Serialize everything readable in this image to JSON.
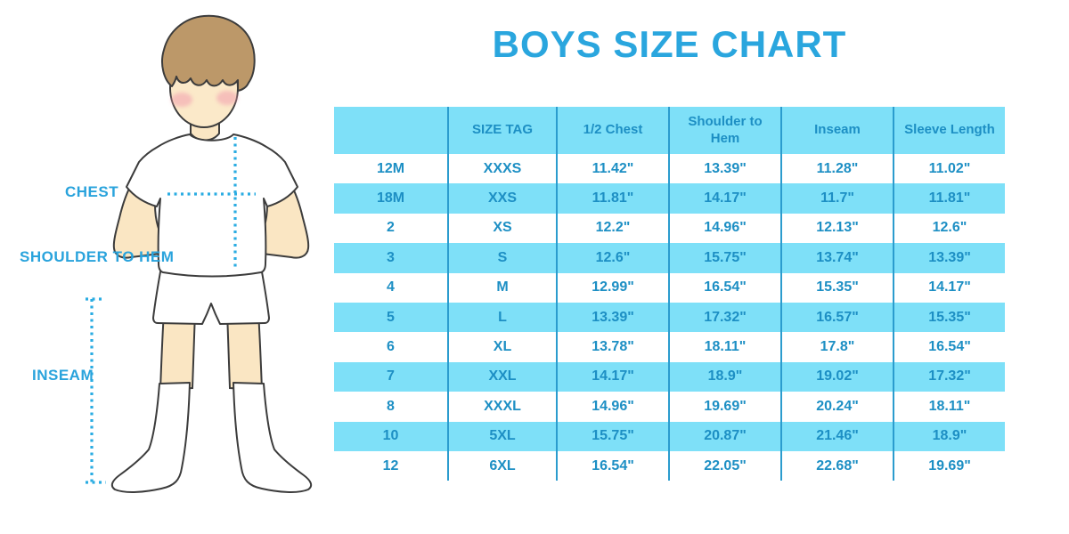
{
  "page": {
    "title": "BOYS SIZE CHART"
  },
  "figure": {
    "labels": {
      "chest": "CHEST",
      "shoulder_to_hem": "SHOULDER TO HEM",
      "inseam": "INSEAM"
    }
  },
  "colors": {
    "accent_blue": "#29A3DC",
    "title_blue": "#2AA6DE",
    "table_header_bg": "#7EE0F8",
    "table_row_alt_bg": "#7EE0F8",
    "table_text": "#1D8FC4",
    "column_divider": "#2B9CCE",
    "dotted_line": "#2AACE2",
    "skin": "#FAE6C3",
    "hair": "#BC9869"
  },
  "chart_data": {
    "type": "table",
    "title": "BOYS SIZE CHART",
    "units": "inches",
    "columns": [
      "",
      "SIZE TAG",
      "1/2 Chest",
      "Shoulder to Hem",
      "Inseam",
      "Sleeve Length"
    ],
    "rows": [
      [
        "12M",
        "XXXS",
        "11.42\"",
        "13.39\"",
        "11.28\"",
        "11.02\""
      ],
      [
        "18M",
        "XXS",
        "11.81\"",
        "14.17\"",
        "11.7\"",
        "11.81\""
      ],
      [
        "2",
        "XS",
        "12.2\"",
        "14.96\"",
        "12.13\"",
        "12.6\""
      ],
      [
        "3",
        "S",
        "12.6\"",
        "15.75\"",
        "13.74\"",
        "13.39\""
      ],
      [
        "4",
        "M",
        "12.99\"",
        "16.54\"",
        "15.35\"",
        "14.17\""
      ],
      [
        "5",
        "L",
        "13.39\"",
        "17.32\"",
        "16.57\"",
        "15.35\""
      ],
      [
        "6",
        "XL",
        "13.78\"",
        "18.11\"",
        "17.8\"",
        "16.54\""
      ],
      [
        "7",
        "XXL",
        "14.17\"",
        "18.9\"",
        "19.02\"",
        "17.32\""
      ],
      [
        "8",
        "XXXL",
        "14.96\"",
        "19.69\"",
        "20.24\"",
        "18.11\""
      ],
      [
        "10",
        "5XL",
        "15.75\"",
        "20.87\"",
        "21.46\"",
        "18.9\""
      ],
      [
        "12",
        "6XL",
        "16.54\"",
        "22.05\"",
        "22.68\"",
        "19.69\""
      ]
    ],
    "row_striping": [
      "white",
      "light-blue"
    ],
    "legend_position": "none",
    "grid": "vertical-dividers-only"
  }
}
